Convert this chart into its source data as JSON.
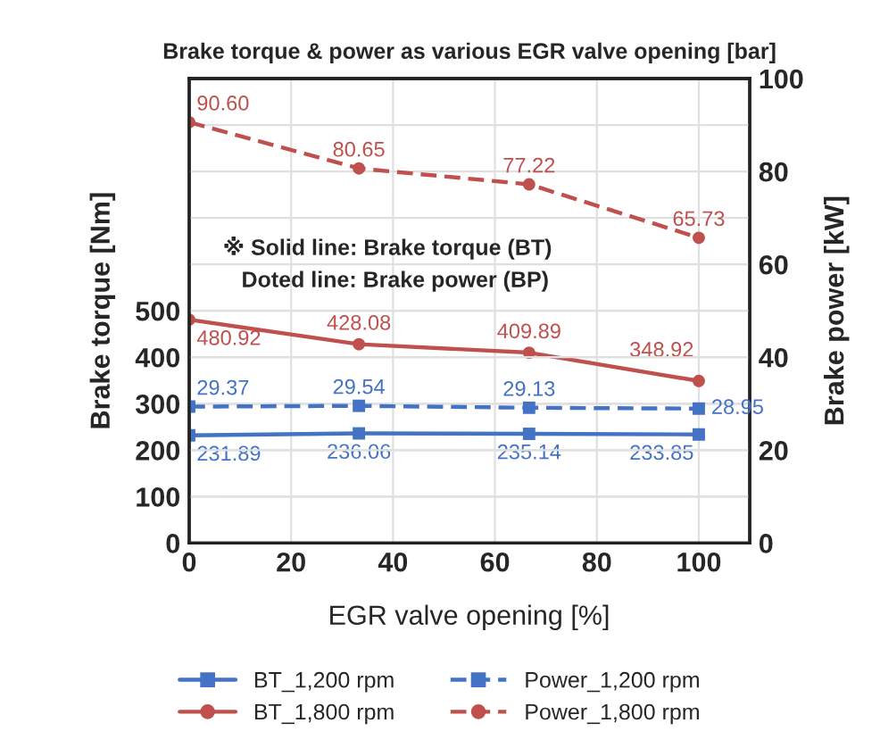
{
  "chart_data": {
    "type": "line",
    "title": "Brake torque & power as various EGR valve opening [bar]",
    "xlabel": "EGR valve opening [%]",
    "ylabel": "Brake torque [Nm]",
    "y2label": "Brake power [kW]",
    "annotations": [
      "※ Solid line: Brake torque (BT)\n   Doted line: Brake power (BP)"
    ],
    "x": [
      0,
      33.3,
      66.7,
      100
    ],
    "series": [
      {
        "name": "BT_1,200 rpm",
        "color": "#4472c4",
        "values": [
          231.89,
          236.06,
          235.14,
          233.85
        ],
        "value_labels": [
          "231.89",
          "236.06",
          "235.14",
          "233.85"
        ],
        "marker": "square",
        "line_style": "solid"
      },
      {
        "name": "BT_1,800 rpm",
        "color": "#c0504d",
        "values": [
          480.92,
          428.08,
          409.89,
          348.92
        ],
        "value_labels": [
          "480.92",
          "428.08",
          "409.89",
          "348.92"
        ],
        "marker": "circle",
        "line_style": "solid"
      },
      {
        "name": "Power_1,200 rpm",
        "color": "#4472c4",
        "values": [
          29.37,
          29.54,
          29.13,
          28.95
        ],
        "value_labels": [
          "29.37",
          "29.54",
          "29.13",
          "28.95"
        ],
        "marker": "square",
        "line_style": "dashed",
        "axis": "y2"
      },
      {
        "name": "Power_1,800 rpm",
        "color": "#c0504d",
        "values": [
          90.6,
          80.65,
          77.22,
          65.73
        ],
        "value_labels": [
          "90.60",
          "80.65",
          "77.22",
          "65.73"
        ],
        "marker": "circle",
        "line_style": "dashed",
        "axis": "y2"
      }
    ],
    "xlim": [
      0,
      110
    ],
    "xticks": [
      0,
      20,
      40,
      60,
      80,
      100
    ],
    "ylim": [
      0,
      1000
    ],
    "yticks": [
      0,
      100,
      200,
      300,
      400,
      500
    ],
    "y2lim": [
      0,
      100
    ],
    "y2ticks": [
      0,
      20,
      40,
      60,
      80,
      100
    ],
    "grid": true,
    "legend": "bottom"
  }
}
